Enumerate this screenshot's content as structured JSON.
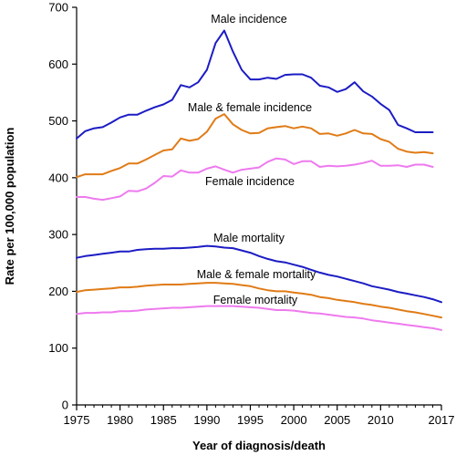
{
  "chart_data": {
    "type": "line",
    "xlabel": "Year of diagnosis/death",
    "ylabel": "Rate per 100,000 population",
    "xlim": [
      1975,
      2017
    ],
    "ylim": [
      0,
      700
    ],
    "x_ticks": [
      1975,
      1980,
      1985,
      1990,
      1995,
      2000,
      2005,
      2010,
      2017
    ],
    "x_tick_labels": [
      "1975",
      "1980",
      "1985",
      "1990",
      "1995",
      "2000",
      "2005",
      "2010",
      "2017"
    ],
    "y_ticks": [
      0,
      100,
      200,
      300,
      400,
      500,
      600,
      700
    ],
    "y_tick_labels": [
      "0",
      "100",
      "200",
      "300",
      "400",
      "500",
      "600",
      "700"
    ],
    "grid": false,
    "legend": "none",
    "x": [
      1975,
      1976,
      1977,
      1978,
      1979,
      1980,
      1981,
      1982,
      1983,
      1984,
      1985,
      1986,
      1987,
      1988,
      1989,
      1990,
      1991,
      1992,
      1993,
      1994,
      1995,
      1996,
      1997,
      1998,
      1999,
      2000,
      2001,
      2002,
      2003,
      2004,
      2005,
      2006,
      2007,
      2008,
      2009,
      2010,
      2011,
      2012,
      2013,
      2014,
      2015,
      2016,
      2017
    ],
    "series": [
      {
        "name": "Male incidence",
        "color": "#1c1cc4",
        "values": [
          469,
          482,
          487,
          489,
          497,
          506,
          511,
          511,
          518,
          524,
          529,
          537,
          563,
          559,
          568,
          590,
          637,
          659,
          622,
          590,
          573,
          573,
          576,
          574,
          581,
          582,
          582,
          576,
          562,
          559,
          551,
          556,
          568,
          552,
          543,
          530,
          519,
          493,
          487,
          480,
          480,
          480,
          null
        ]
      },
      {
        "name": "Male & female incidence",
        "color": "#e07b16",
        "values": [
          401,
          406,
          406,
          406,
          412,
          417,
          425,
          425,
          432,
          440,
          448,
          450,
          469,
          465,
          468,
          481,
          504,
          512,
          494,
          484,
          478,
          479,
          487,
          489,
          491,
          487,
          490,
          487,
          477,
          478,
          474,
          478,
          484,
          478,
          477,
          468,
          463,
          451,
          446,
          444,
          445,
          443,
          null
        ]
      },
      {
        "name": "Female incidence",
        "color": "#ee7aee",
        "values": [
          366,
          366,
          363,
          361,
          364,
          367,
          377,
          376,
          381,
          391,
          403,
          402,
          413,
          409,
          409,
          416,
          420,
          414,
          409,
          414,
          416,
          418,
          428,
          434,
          432,
          424,
          429,
          429,
          419,
          421,
          420,
          421,
          423,
          426,
          430,
          421,
          421,
          422,
          419,
          423,
          423,
          419,
          null
        ]
      },
      {
        "name": "Male mortality",
        "color": "#1c1cc4",
        "values": [
          259,
          262,
          264,
          266,
          268,
          270,
          270,
          273,
          274,
          275,
          275,
          276,
          276,
          277,
          278,
          280,
          279,
          277,
          276,
          272,
          268,
          262,
          257,
          253,
          251,
          247,
          243,
          238,
          233,
          229,
          226,
          222,
          218,
          214,
          209,
          206,
          203,
          199,
          196,
          193,
          190,
          186,
          181
        ]
      },
      {
        "name": "Male & female mortality",
        "color": "#e07b16",
        "values": [
          199,
          202,
          203,
          204,
          205,
          207,
          207,
          208,
          210,
          211,
          212,
          212,
          212,
          213,
          214,
          215,
          215,
          214,
          213,
          211,
          209,
          205,
          202,
          200,
          200,
          198,
          196,
          194,
          190,
          188,
          185,
          183,
          181,
          178,
          176,
          173,
          171,
          168,
          165,
          163,
          160,
          157,
          154
        ]
      },
      {
        "name": "Female mortality",
        "color": "#ee7aee",
        "values": [
          160,
          162,
          162,
          163,
          163,
          165,
          165,
          166,
          168,
          169,
          170,
          171,
          171,
          172,
          173,
          174,
          174,
          174,
          174,
          173,
          172,
          171,
          169,
          167,
          167,
          166,
          164,
          162,
          161,
          159,
          157,
          155,
          154,
          152,
          149,
          147,
          145,
          143,
          141,
          139,
          137,
          135,
          132
        ]
      }
    ]
  }
}
